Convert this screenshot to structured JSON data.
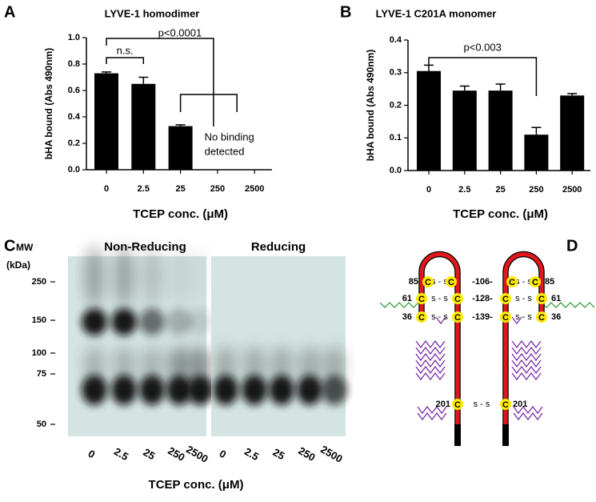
{
  "chart_data": [
    {
      "type": "bar",
      "panel": "A",
      "title": "LYVE-1 homodimer",
      "ylabel": "bHA bound (Abs 490nm)",
      "xlabel": "TCEP conc. (μM)",
      "categories": [
        "0",
        "2.5",
        "25",
        "250",
        "2500"
      ],
      "values": [
        0.73,
        0.65,
        0.33,
        null,
        null
      ],
      "errors": [
        0.01,
        0.05,
        0.01,
        null,
        null
      ],
      "color": "#000000",
      "ylim": [
        0,
        1.0
      ],
      "yticks": [
        {
          "value": 0,
          "label": "0.0"
        },
        0.2,
        0.4,
        0.6,
        0.8,
        {
          "value": 1.0,
          "label": "1.0"
        }
      ],
      "annotations": {
        "ns": "n.s.",
        "p": "p<0.0001",
        "no_binding": [
          "No binding",
          "detected"
        ]
      }
    },
    {
      "type": "bar",
      "panel": "B",
      "title": "LYVE-1 C201A monomer",
      "ylabel": "bHA bound (Abs 490nm)",
      "xlabel": "TCEP conc. (μM)",
      "categories": [
        "0",
        "2.5",
        "25",
        "250",
        "2500"
      ],
      "values": [
        0.305,
        0.245,
        0.245,
        0.11,
        0.23
      ],
      "errors": [
        0.018,
        0.014,
        0.02,
        0.022,
        0.006
      ],
      "color": "#000000",
      "ylim": [
        0,
        0.4
      ],
      "yticks": [
        {
          "value": 0,
          "label": "0.0"
        },
        0.1,
        0.2,
        0.3,
        0.4
      ],
      "annotations": {
        "p": "p<0.003"
      }
    }
  ],
  "gel": {
    "panel": "C",
    "mw_label": "MW",
    "mw_unit": "(kDa)",
    "mw_markers": [
      250,
      150,
      100,
      75,
      50
    ],
    "conditions": [
      "Non-Reducing",
      "Reducing"
    ],
    "lanes": [
      "0",
      "2.5",
      "25",
      "250",
      "2500"
    ],
    "xlabel": "TCEP conc. (μM)"
  },
  "diagram": {
    "panel": "D",
    "cys": "C",
    "ss": "s - s",
    "left_numbers": [
      "85",
      "61",
      "36"
    ],
    "mid_numbers": [
      "-106-",
      "-128-",
      "-139-"
    ],
    "right_numbers": [
      "85",
      "61",
      "36"
    ],
    "bottom_number": "201"
  }
}
